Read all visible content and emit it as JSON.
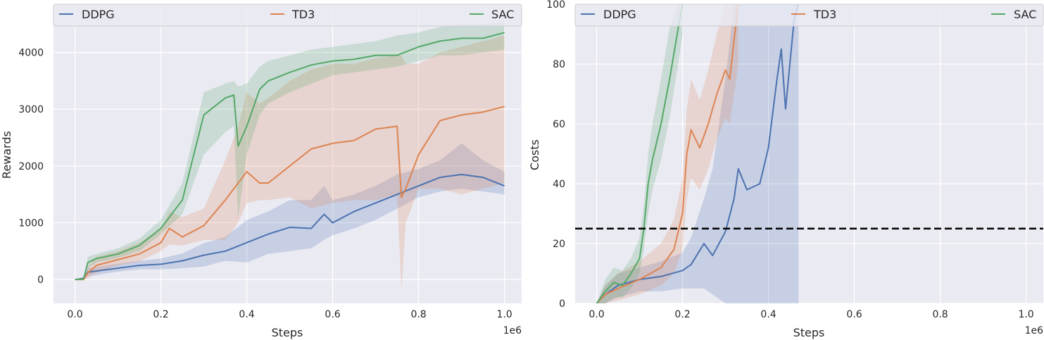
{
  "palette": {
    "DDPG": "#4c72b0",
    "TD3": "#dd8452",
    "SAC": "#55a868",
    "axes_bg": "#eaeaf2",
    "grid": "#ffffff",
    "threshold": "#000000"
  },
  "chart_data": [
    {
      "type": "line",
      "xlabel": "Steps",
      "ylabel": "Rewards",
      "x_scale_label": "1e6",
      "xlim": [
        -0.05,
        1.04
      ],
      "ylim": [
        -420,
        4850
      ],
      "xticks": [
        0.0,
        0.2,
        0.4,
        0.6,
        0.8,
        1.0
      ],
      "xtick_labels": [
        "0.0",
        "0.2",
        "0.4",
        "0.6",
        "0.8",
        "1.0"
      ],
      "yticks": [
        0,
        1000,
        2000,
        3000,
        4000
      ],
      "ytick_labels": [
        "0",
        "1000",
        "2000",
        "3000",
        "4000"
      ],
      "grid": true,
      "legend": "top, horizontal",
      "series": [
        {
          "name": "DDPG",
          "color": "#4c72b0",
          "x": [
            0,
            0.02,
            0.03,
            0.05,
            0.1,
            0.15,
            0.2,
            0.25,
            0.3,
            0.35,
            0.4,
            0.45,
            0.5,
            0.55,
            0.58,
            0.6,
            0.65,
            0.7,
            0.75,
            0.8,
            0.85,
            0.9,
            0.95,
            1.0
          ],
          "mean": [
            0,
            20,
            130,
            150,
            200,
            250,
            270,
            330,
            430,
            500,
            650,
            800,
            920,
            900,
            1150,
            1000,
            1200,
            1350,
            1500,
            1650,
            1800,
            1850,
            1800,
            1650
          ],
          "low": [
            0,
            0,
            60,
            80,
            140,
            180,
            180,
            200,
            230,
            330,
            300,
            450,
            500,
            550,
            700,
            780,
            900,
            1050,
            1250,
            1450,
            1550,
            1600,
            1550,
            1500
          ],
          "high": [
            0,
            50,
            200,
            220,
            280,
            330,
            370,
            460,
            640,
            750,
            1050,
            1200,
            1400,
            1400,
            1650,
            1400,
            1500,
            1650,
            1850,
            1950,
            2100,
            2400,
            2100,
            1900
          ]
        },
        {
          "name": "TD3",
          "color": "#dd8452",
          "x": [
            0,
            0.02,
            0.03,
            0.05,
            0.1,
            0.15,
            0.2,
            0.22,
            0.25,
            0.3,
            0.35,
            0.38,
            0.4,
            0.43,
            0.45,
            0.5,
            0.55,
            0.6,
            0.65,
            0.7,
            0.75,
            0.76,
            0.77,
            0.8,
            0.85,
            0.9,
            0.95,
            1.0
          ],
          "mean": [
            0,
            0,
            120,
            250,
            350,
            450,
            650,
            900,
            750,
            950,
            1400,
            1700,
            1900,
            1700,
            1700,
            2000,
            2300,
            2400,
            2450,
            2650,
            2700,
            1450,
            1600,
            2200,
            2800,
            2900,
            2950,
            3050
          ],
          "low": [
            0,
            0,
            20,
            120,
            250,
            320,
            500,
            620,
            600,
            700,
            700,
            1000,
            1350,
            1400,
            1400,
            1450,
            1250,
            1350,
            1400,
            1400,
            1500,
            -200,
            1000,
            1600,
            1600,
            1500,
            1600,
            1700
          ],
          "high": [
            0,
            0,
            220,
            400,
            500,
            650,
            900,
            1200,
            1100,
            1250,
            2100,
            2700,
            3300,
            3100,
            3200,
            3500,
            3700,
            3800,
            3800,
            3900,
            3950,
            3950,
            3800,
            3800,
            4000,
            4100,
            4200,
            4300
          ]
        },
        {
          "name": "SAC",
          "color": "#55a868",
          "x": [
            0,
            0.02,
            0.03,
            0.05,
            0.1,
            0.15,
            0.2,
            0.25,
            0.3,
            0.35,
            0.37,
            0.38,
            0.4,
            0.43,
            0.45,
            0.5,
            0.55,
            0.6,
            0.65,
            0.7,
            0.75,
            0.8,
            0.85,
            0.9,
            0.95,
            1.0
          ],
          "mean": [
            0,
            10,
            300,
            370,
            450,
            600,
            900,
            1400,
            2900,
            3200,
            3250,
            2350,
            2700,
            3350,
            3500,
            3650,
            3780,
            3850,
            3880,
            3950,
            3950,
            4100,
            4200,
            4250,
            4250,
            4350
          ],
          "low": [
            0,
            0,
            200,
            300,
            380,
            500,
            800,
            1150,
            2200,
            2600,
            2700,
            1100,
            2200,
            2900,
            3100,
            3300,
            3450,
            3600,
            3650,
            3700,
            3750,
            3850,
            3950,
            3950,
            4000,
            4050
          ],
          "high": [
            0,
            30,
            400,
            450,
            550,
            720,
            1050,
            1700,
            3300,
            3450,
            3500,
            3400,
            3450,
            3750,
            3850,
            3950,
            4050,
            4100,
            4150,
            4200,
            4300,
            4350,
            4450,
            4500,
            4500,
            4550
          ]
        }
      ]
    },
    {
      "type": "line",
      "xlabel": "Steps",
      "ylabel": "Costs",
      "x_scale_label": "1e6",
      "xlim": [
        -0.05,
        1.04
      ],
      "ylim": [
        0,
        100
      ],
      "xticks": [
        0.0,
        0.2,
        0.4,
        0.6,
        0.8,
        1.0
      ],
      "xtick_labels": [
        "0.0",
        "0.2",
        "0.4",
        "0.6",
        "0.8",
        "1.0"
      ],
      "yticks": [
        0,
        20,
        40,
        60,
        80,
        100
      ],
      "ytick_labels": [
        "0",
        "20",
        "40",
        "60",
        "80",
        "100"
      ],
      "grid": true,
      "legend": "top, horizontal",
      "threshold": 25,
      "series": [
        {
          "name": "DDPG",
          "color": "#4c72b0",
          "x": [
            0,
            0.02,
            0.05,
            0.1,
            0.15,
            0.2,
            0.22,
            0.25,
            0.27,
            0.3,
            0.32,
            0.33,
            0.35,
            0.38,
            0.4,
            0.42,
            0.43,
            0.44,
            0.45,
            0.46,
            0.47
          ],
          "mean": [
            0,
            3,
            6,
            8,
            9,
            11,
            13,
            20,
            16,
            24,
            35,
            45,
            38,
            40,
            52,
            75,
            85,
            65,
            80,
            95,
            100
          ],
          "low": [
            0,
            0,
            2,
            4,
            4,
            5,
            5,
            5,
            3,
            0,
            0,
            0,
            0,
            0,
            0,
            0,
            0,
            0,
            0,
            0,
            0
          ],
          "high": [
            0,
            6,
            10,
            12,
            14,
            17,
            22,
            35,
            45,
            75,
            100,
            100,
            100,
            100,
            100,
            100,
            100,
            100,
            100,
            100,
            100
          ]
        },
        {
          "name": "TD3",
          "color": "#dd8452",
          "x": [
            0,
            0.02,
            0.05,
            0.1,
            0.15,
            0.18,
            0.2,
            0.21,
            0.22,
            0.24,
            0.26,
            0.28,
            0.3,
            0.31,
            0.32,
            0.33
          ],
          "mean": [
            0,
            3,
            5,
            8,
            12,
            18,
            30,
            50,
            58,
            52,
            60,
            70,
            78,
            75,
            88,
            100
          ],
          "low": [
            0,
            0,
            1,
            3,
            6,
            10,
            18,
            35,
            42,
            38,
            45,
            55,
            62,
            60,
            70,
            80
          ],
          "high": [
            0,
            6,
            10,
            14,
            20,
            28,
            42,
            65,
            75,
            68,
            78,
            90,
            100,
            100,
            100,
            100
          ]
        },
        {
          "name": "SAC",
          "color": "#55a868",
          "x": [
            0,
            0.02,
            0.04,
            0.06,
            0.08,
            0.1,
            0.11,
            0.12,
            0.13,
            0.15,
            0.17,
            0.19,
            0.2
          ],
          "mean": [
            0,
            4,
            7,
            6,
            10,
            15,
            25,
            40,
            48,
            60,
            75,
            92,
            100
          ],
          "low": [
            0,
            0,
            2,
            2,
            5,
            10,
            18,
            30,
            38,
            48,
            62,
            80,
            90
          ],
          "high": [
            0,
            8,
            12,
            11,
            15,
            22,
            33,
            50,
            60,
            75,
            92,
            100,
            100
          ]
        }
      ]
    }
  ]
}
